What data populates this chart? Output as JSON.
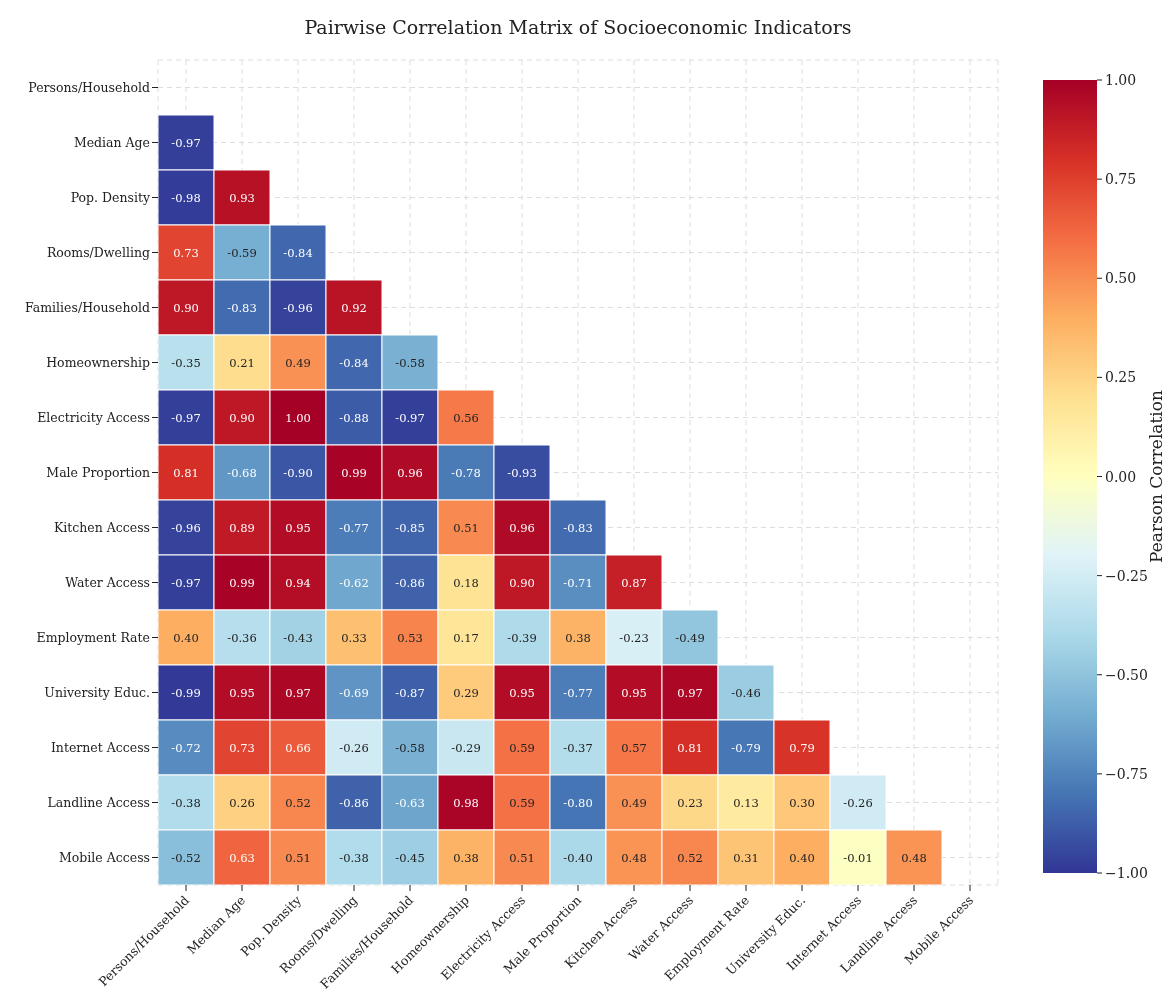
{
  "chart_data": {
    "type": "heatmap",
    "title": "Pairwise Correlation Matrix of Socioeconomic Indicators",
    "categories": [
      "Persons/Household",
      "Median Age",
      "Pop. Density",
      "Rooms/Dwelling",
      "Families/Household",
      "Homeownership",
      "Electricity Access",
      "Male Proportion",
      "Kitchen Access",
      "Water Access",
      "Employment Rate",
      "University Educ.",
      "Internet Access",
      "Landline Access",
      "Mobile Access"
    ],
    "y_categories": [
      "Persons/Household",
      "Median Age",
      "Pop. Density",
      "Rooms/Dwelling",
      "Families/Household",
      "Homeownership",
      "Electricity Access",
      "Male Proportion",
      "Kitchen Access",
      "Water Access",
      "Employment Rate",
      "University Educ.",
      "Internet Access",
      "Landline Access",
      "Mobile Access"
    ],
    "cells": [
      [
        null,
        null,
        null,
        null,
        null,
        null,
        null,
        null,
        null,
        null,
        null,
        null,
        null,
        null,
        null
      ],
      [
        -0.97,
        null,
        null,
        null,
        null,
        null,
        null,
        null,
        null,
        null,
        null,
        null,
        null,
        null,
        null
      ],
      [
        -0.98,
        0.93,
        null,
        null,
        null,
        null,
        null,
        null,
        null,
        null,
        null,
        null,
        null,
        null,
        null
      ],
      [
        0.73,
        -0.59,
        -0.84,
        null,
        null,
        null,
        null,
        null,
        null,
        null,
        null,
        null,
        null,
        null,
        null
      ],
      [
        0.9,
        -0.83,
        -0.96,
        0.92,
        null,
        null,
        null,
        null,
        null,
        null,
        null,
        null,
        null,
        null,
        null
      ],
      [
        -0.35,
        0.21,
        0.49,
        -0.84,
        -0.58,
        null,
        null,
        null,
        null,
        null,
        null,
        null,
        null,
        null,
        null
      ],
      [
        -0.97,
        0.9,
        1.0,
        -0.88,
        -0.97,
        0.56,
        null,
        null,
        null,
        null,
        null,
        null,
        null,
        null,
        null
      ],
      [
        0.81,
        -0.68,
        -0.9,
        0.99,
        0.96,
        -0.78,
        -0.93,
        null,
        null,
        null,
        null,
        null,
        null,
        null,
        null
      ],
      [
        -0.96,
        0.89,
        0.95,
        -0.77,
        -0.85,
        0.51,
        0.96,
        -0.83,
        null,
        null,
        null,
        null,
        null,
        null,
        null
      ],
      [
        -0.97,
        0.99,
        0.94,
        -0.62,
        -0.86,
        0.18,
        0.9,
        -0.71,
        0.87,
        null,
        null,
        null,
        null,
        null,
        null
      ],
      [
        0.4,
        -0.36,
        -0.43,
        0.33,
        0.53,
        0.17,
        -0.39,
        0.38,
        -0.23,
        -0.49,
        null,
        null,
        null,
        null,
        null
      ],
      [
        -0.99,
        0.95,
        0.97,
        -0.69,
        -0.87,
        0.29,
        0.95,
        -0.77,
        0.95,
        0.97,
        -0.46,
        null,
        null,
        null,
        null
      ],
      [
        -0.72,
        0.73,
        0.66,
        -0.26,
        -0.58,
        -0.29,
        0.59,
        -0.37,
        0.57,
        0.81,
        -0.79,
        0.79,
        null,
        null,
        null
      ],
      [
        -0.38,
        0.26,
        0.52,
        -0.86,
        -0.63,
        0.98,
        0.59,
        -0.8,
        0.49,
        0.23,
        0.13,
        0.3,
        -0.26,
        null,
        null
      ],
      [
        -0.52,
        0.63,
        0.51,
        -0.38,
        -0.45,
        0.38,
        0.51,
        -0.4,
        0.48,
        0.52,
        0.31,
        0.4,
        -0.01,
        0.48,
        null
      ]
    ],
    "cell_labels": [
      [
        null,
        null,
        null,
        null,
        null,
        null,
        null,
        null,
        null,
        null,
        null,
        null,
        null,
        null,
        null
      ],
      [
        "-0.97",
        null,
        null,
        null,
        null,
        null,
        null,
        null,
        null,
        null,
        null,
        null,
        null,
        null,
        null
      ],
      [
        "-0.98",
        "0.93",
        null,
        null,
        null,
        null,
        null,
        null,
        null,
        null,
        null,
        null,
        null,
        null,
        null
      ],
      [
        "0.73",
        "-0.59",
        "-0.84",
        null,
        null,
        null,
        null,
        null,
        null,
        null,
        null,
        null,
        null,
        null,
        null
      ],
      [
        "0.90",
        "-0.83",
        "-0.96",
        "0.92",
        null,
        null,
        null,
        null,
        null,
        null,
        null,
        null,
        null,
        null,
        null
      ],
      [
        "-0.35",
        "0.21",
        "0.49",
        "-0.84",
        "-0.58",
        null,
        null,
        null,
        null,
        null,
        null,
        null,
        null,
        null,
        null
      ],
      [
        "-0.97",
        "0.90",
        "1.00",
        "-0.88",
        "-0.97",
        "0.56",
        null,
        null,
        null,
        null,
        null,
        null,
        null,
        null,
        null
      ],
      [
        "0.81",
        "-0.68",
        "-0.90",
        "0.99",
        "0.96",
        "-0.78",
        "-0.93",
        null,
        null,
        null,
        null,
        null,
        null,
        null,
        null
      ],
      [
        "-0.96",
        "0.89",
        "0.95",
        "-0.77",
        "-0.85",
        "0.51",
        "0.96",
        "-0.83",
        null,
        null,
        null,
        null,
        null,
        null,
        null
      ],
      [
        "-0.97",
        "0.99",
        "0.94",
        "-0.62",
        "-0.86",
        "0.18",
        "0.90",
        "-0.71",
        "0.87",
        null,
        null,
        null,
        null,
        null,
        null
      ],
      [
        "0.40",
        "-0.36",
        "-0.43",
        "0.33",
        "0.53",
        "0.17",
        "-0.39",
        "0.38",
        "-0.23",
        "-0.49",
        null,
        null,
        null,
        null,
        null
      ],
      [
        "-0.99",
        "0.95",
        "0.97",
        "-0.69",
        "-0.87",
        "0.29",
        "0.95",
        "-0.77",
        "0.95",
        "0.97",
        "-0.46",
        null,
        null,
        null,
        null
      ],
      [
        "-0.72",
        "0.73",
        "0.66",
        "-0.26",
        "-0.58",
        "-0.29",
        "0.59",
        "-0.37",
        "0.57",
        "0.81",
        "-0.79",
        "0.79",
        null,
        null,
        null
      ],
      [
        "-0.38",
        "0.26",
        "0.52",
        "-0.86",
        "-0.63",
        "0.98",
        "0.59",
        "-0.80",
        "0.49",
        "0.23",
        "0.13",
        "0.30",
        "-0.26",
        null,
        null
      ],
      [
        "-0.52",
        "0.63",
        "0.51",
        "-0.38",
        "-0.45",
        "0.38",
        "0.51",
        "-0.40",
        "0.48",
        "0.52",
        "0.31",
        "0.40",
        "-0.01",
        "0.48",
        null
      ]
    ],
    "clim": [
      -1,
      1
    ],
    "cticks": [
      {
        "value": -1,
        "label": "−1.00"
      },
      {
        "value": -0.75,
        "label": "−0.75"
      },
      {
        "value": -0.5,
        "label": "−0.50"
      },
      {
        "value": -0.25,
        "label": "−0.25"
      },
      {
        "value": 0,
        "label": "0.00"
      },
      {
        "value": 0.25,
        "label": "0.25"
      },
      {
        "value": 0.5,
        "label": "0.50"
      },
      {
        "value": 0.75,
        "label": "0.75"
      },
      {
        "value": 1,
        "label": "1.00"
      }
    ],
    "clabel": "Pearson Correlation",
    "grid": true
  }
}
